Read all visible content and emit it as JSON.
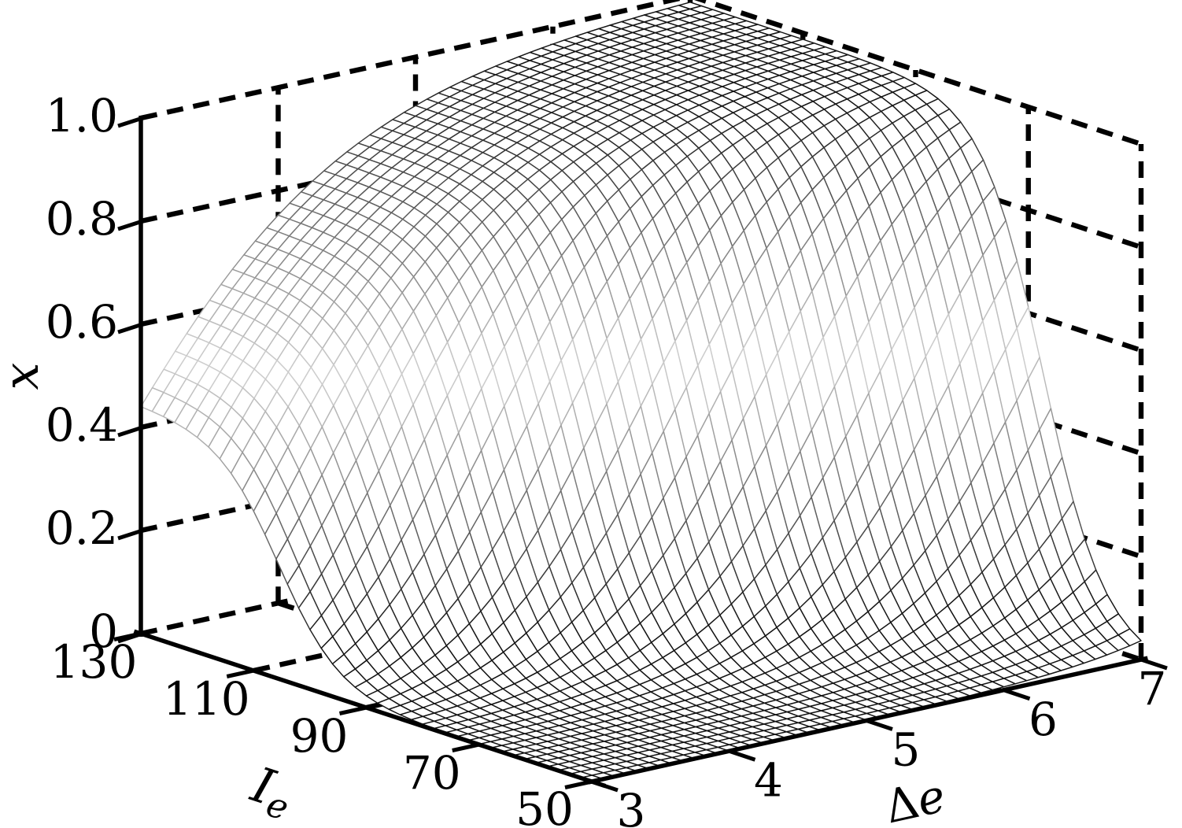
{
  "figure": {
    "background": "#ffffff",
    "kind": "3D wireframe mesh surface plot with dashed box grid"
  },
  "chart_data": {
    "type": "surface",
    "title": "",
    "legend": null,
    "grid": "dashed box grid on back walls and floor",
    "axes": {
      "z": {
        "label": "x",
        "label_style": "italic, rotated -90",
        "range": [
          0,
          1
        ],
        "tick_labels": [
          "0",
          "0.2",
          "0.4",
          "0.6",
          "0.8",
          "1.0"
        ],
        "tick_values": [
          0,
          0.2,
          0.4,
          0.6,
          0.8,
          1.0
        ]
      },
      "ie": {
        "label_main": "I",
        "label_sub": "e",
        "label_style": "italic with subscript",
        "range": [
          50,
          130
        ],
        "tick_labels": [
          "130",
          "110",
          "90",
          "70",
          "50"
        ],
        "tick_values": [
          130,
          110,
          90,
          70,
          50
        ]
      },
      "delta_e": {
        "label_main": "Δ",
        "label_suffix": "e",
        "label_style": "upright Delta + italic e",
        "range": [
          3,
          7
        ],
        "tick_labels": [
          "3",
          "4",
          "5",
          "6",
          "7"
        ],
        "tick_values": [
          3,
          4,
          5,
          6,
          7
        ]
      }
    },
    "surface": {
      "description": "Smooth sigmoidal bump: x rises toward high Ie and high Delta-e, plateau near 1.0 at back corner (Ie=130, de=7); x(130,3)=0.44; near zero along front (Ie=50) and low-Ie region",
      "z_at_ticks": {
        "de_rows": [
          3,
          4,
          5,
          6,
          7
        ],
        "ie_cols": [
          50,
          70,
          90,
          110,
          130
        ],
        "values": [
          [
            0.0,
            0.001,
            0.023,
            0.309,
            0.44
          ],
          [
            0.0,
            0.006,
            0.184,
            0.703,
            0.752
          ],
          [
            0.001,
            0.039,
            0.596,
            0.895,
            0.906
          ],
          [
            0.006,
            0.206,
            0.889,
            0.964,
            0.966
          ],
          [
            0.036,
            0.612,
            0.974,
            0.988,
            0.988
          ]
        ]
      },
      "model": {
        "form": "x = H(de) * logistic((Ie - c(de))/w)",
        "H": "exp(-exp(-(de-2.8)/0.95))",
        "c": "105.6 - 9.55*(de-3)",
        "w": 5.34,
        "ie_divisions": 40,
        "de_divisions": 48
      }
    },
    "style": {
      "mesh_face_color": "#ffffff",
      "mesh_line_shading": "line gray depends on height: light near z=0.5, black near z=0 and z=1",
      "mesh_gray_light": 205,
      "mesh_gray_dark": 18,
      "axis_color": "#000000",
      "dashed_color": "#000000"
    }
  }
}
